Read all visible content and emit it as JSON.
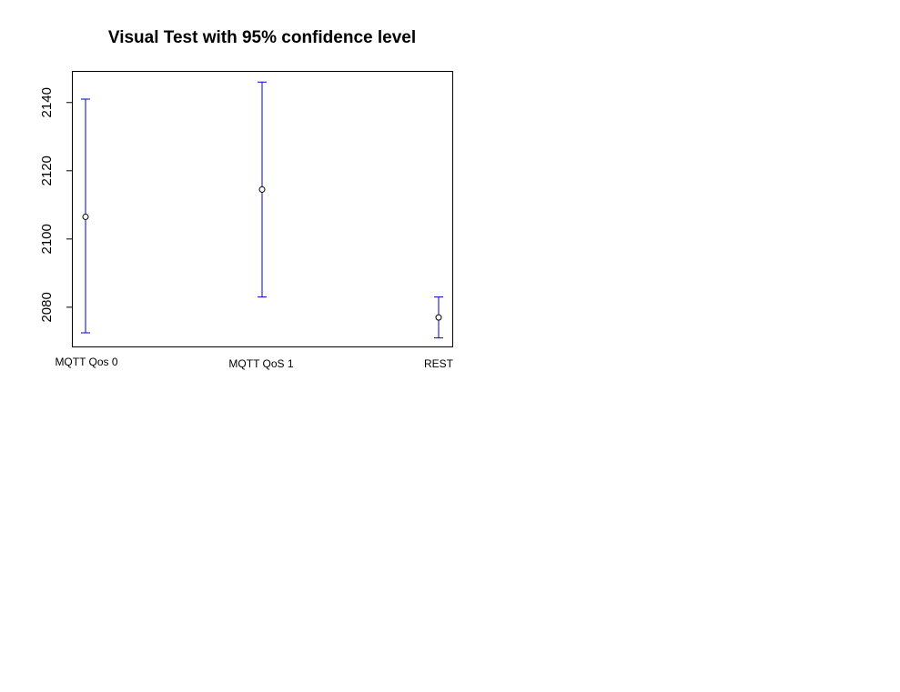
{
  "chart_data": {
    "type": "scatter",
    "title": "Visual Test with 95% confidence level",
    "xlabel": "",
    "ylabel": "",
    "categories": [
      "MQTT Qos 0",
      "MQTT QoS 1",
      "REST"
    ],
    "series": [
      {
        "mean": [
          2106.5,
          2114.5,
          2077
        ],
        "lower": [
          2072.5,
          2083,
          2071
        ],
        "upper": [
          2141,
          2146,
          2083
        ]
      }
    ],
    "yticks": [
      "2080",
      "2100",
      "2120",
      "2140"
    ],
    "ylim": [
      2068.5,
      2149
    ],
    "grid": false,
    "legend": "none",
    "colors": {
      "error_bar": "#0000cc",
      "point": "#000000",
      "frame": "#000000"
    }
  }
}
